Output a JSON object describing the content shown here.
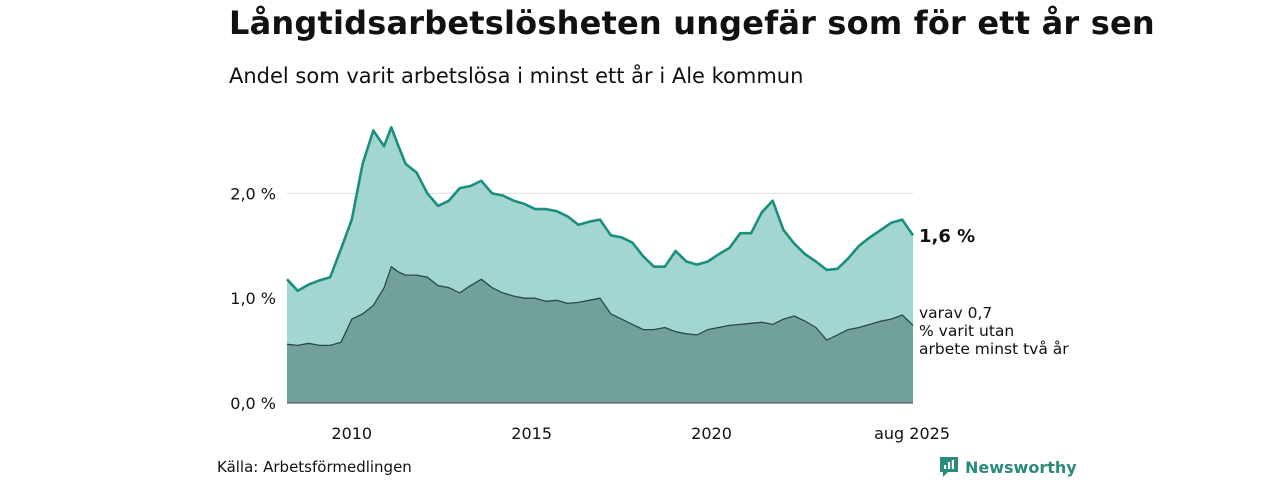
{
  "header": {
    "title": "Långtidsarbetslösheten ungefär som för ett år sen",
    "subtitle": "Andel som varit arbetslösa i minst ett år i Ale kommun"
  },
  "footer": {
    "source": "Källa: Arbetsförmedlingen",
    "brand": "Newsworthy"
  },
  "colors": {
    "series_total_line": "#1a8f80",
    "series_total_fill": "#a3d6d0",
    "series_longterm_line": "#2b4a44",
    "series_longterm_fill": "#72a09a",
    "gridline": "#dddddd",
    "brand": "#2a8a7c"
  },
  "chart_data": {
    "type": "area",
    "title": "Långtidsarbetslösheten ungefär som för ett år sen",
    "subtitle": "Andel som varit arbetslösa i minst ett år i Ale kommun",
    "xlim": [
      2008.2,
      2025.6
    ],
    "ylim": [
      0,
      2.7
    ],
    "y_ticks": [
      {
        "value": 0,
        "label": "0,0 %"
      },
      {
        "value": 1,
        "label": "1,0 %"
      },
      {
        "value": 2,
        "label": "2,0 %"
      }
    ],
    "x_ticks": [
      {
        "value": 2010,
        "label": "2010"
      },
      {
        "value": 2015,
        "label": "2015"
      },
      {
        "value": 2020,
        "label": "2020"
      },
      {
        "value": 2025.6,
        "label": "aug 2025"
      }
    ],
    "grid": "horizontal",
    "series": [
      {
        "key": "total",
        "end_label": "1,6 %",
        "x": [
          2008.2,
          2008.5,
          2008.8,
          2009.1,
          2009.4,
          2009.7,
          2010.0,
          2010.3,
          2010.6,
          2010.9,
          2011.1,
          2011.3,
          2011.5,
          2011.8,
          2012.1,
          2012.4,
          2012.7,
          2013.0,
          2013.3,
          2013.6,
          2013.9,
          2014.2,
          2014.5,
          2014.8,
          2015.1,
          2015.4,
          2015.7,
          2016.0,
          2016.3,
          2016.6,
          2016.9,
          2017.2,
          2017.5,
          2017.8,
          2018.1,
          2018.4,
          2018.7,
          2019.0,
          2019.3,
          2019.6,
          2019.9,
          2020.2,
          2020.5,
          2020.8,
          2021.1,
          2021.4,
          2021.7,
          2022.0,
          2022.3,
          2022.6,
          2022.9,
          2023.2,
          2023.5,
          2023.8,
          2024.1,
          2024.4,
          2024.7,
          2025.0,
          2025.3,
          2025.6
        ],
        "values": [
          1.18,
          1.07,
          1.13,
          1.17,
          1.2,
          1.47,
          1.75,
          2.28,
          2.6,
          2.45,
          2.63,
          2.45,
          2.28,
          2.2,
          2.0,
          1.88,
          1.93,
          2.05,
          2.07,
          2.12,
          2.0,
          1.98,
          1.93,
          1.9,
          1.85,
          1.85,
          1.83,
          1.78,
          1.7,
          1.73,
          1.75,
          1.6,
          1.58,
          1.53,
          1.4,
          1.3,
          1.3,
          1.45,
          1.35,
          1.32,
          1.35,
          1.42,
          1.48,
          1.62,
          1.62,
          1.82,
          1.93,
          1.65,
          1.52,
          1.42,
          1.35,
          1.27,
          1.28,
          1.38,
          1.5,
          1.58,
          1.65,
          1.72,
          1.75,
          1.6
        ]
      },
      {
        "key": "longterm",
        "end_label": "varav 0,7 % varit utan arbete minst två år",
        "x": [
          2008.2,
          2008.5,
          2008.8,
          2009.1,
          2009.4,
          2009.7,
          2010.0,
          2010.3,
          2010.6,
          2010.9,
          2011.1,
          2011.3,
          2011.5,
          2011.8,
          2012.1,
          2012.4,
          2012.7,
          2013.0,
          2013.3,
          2013.6,
          2013.9,
          2014.2,
          2014.5,
          2014.8,
          2015.1,
          2015.4,
          2015.7,
          2016.0,
          2016.3,
          2016.6,
          2016.9,
          2017.2,
          2017.5,
          2017.8,
          2018.1,
          2018.4,
          2018.7,
          2019.0,
          2019.3,
          2019.6,
          2019.9,
          2020.2,
          2020.5,
          2020.8,
          2021.1,
          2021.4,
          2021.7,
          2022.0,
          2022.3,
          2022.6,
          2022.9,
          2023.2,
          2023.5,
          2023.8,
          2024.1,
          2024.4,
          2024.7,
          2025.0,
          2025.3,
          2025.6
        ],
        "values": [
          0.56,
          0.55,
          0.57,
          0.55,
          0.55,
          0.58,
          0.8,
          0.85,
          0.93,
          1.1,
          1.3,
          1.25,
          1.22,
          1.22,
          1.2,
          1.12,
          1.1,
          1.05,
          1.12,
          1.18,
          1.1,
          1.05,
          1.02,
          1.0,
          1.0,
          0.97,
          0.98,
          0.95,
          0.96,
          0.98,
          1.0,
          0.85,
          0.8,
          0.75,
          0.7,
          0.7,
          0.72,
          0.68,
          0.66,
          0.65,
          0.7,
          0.72,
          0.74,
          0.75,
          0.76,
          0.77,
          0.75,
          0.8,
          0.83,
          0.78,
          0.72,
          0.6,
          0.65,
          0.7,
          0.72,
          0.75,
          0.78,
          0.8,
          0.84,
          0.74
        ]
      }
    ]
  }
}
